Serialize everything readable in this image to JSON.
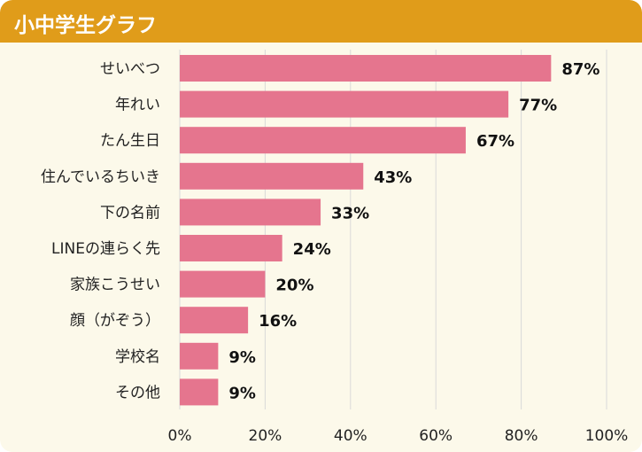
{
  "chart_data": {
    "type": "bar",
    "orientation": "horizontal",
    "title": "小中学生グラフ",
    "categories": [
      "せいべつ",
      "年れい",
      "たん生日",
      "住んでいるちいき",
      "下の名前",
      "LINEの連らく先",
      "家族こうせい",
      "顔（がぞう）",
      "学校名",
      "その他"
    ],
    "values": [
      87,
      77,
      67,
      43,
      33,
      24,
      20,
      16,
      9,
      9
    ],
    "value_labels": [
      "87%",
      "77%",
      "67%",
      "43%",
      "33%",
      "24%",
      "20%",
      "16%",
      "9%",
      "9%"
    ],
    "x_ticks": [
      "0%",
      "20%",
      "40%",
      "60%",
      "80%",
      "100%"
    ],
    "xlim": [
      0,
      100
    ],
    "grid": true,
    "colors": {
      "bar": "#e5758e",
      "header": "#e09c1a",
      "background": "#fcf9ea",
      "grid": "#d9d9d9"
    }
  }
}
